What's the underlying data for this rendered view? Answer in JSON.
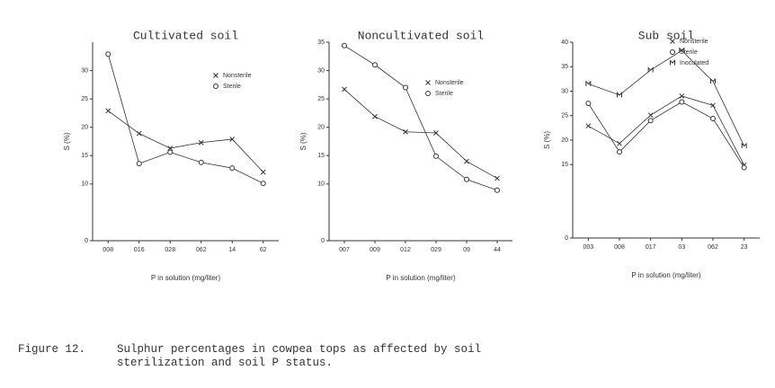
{
  "chart_data": [
    {
      "type": "line",
      "title": "Cultivated soil",
      "ylabel": "S (%)",
      "xlabel": "P in solution (mg/liter)",
      "categories": [
        "008",
        "016",
        "028",
        "062",
        "14",
        "62"
      ],
      "ylim": [
        0,
        35
      ],
      "yticks": [
        0,
        10,
        15,
        20,
        25,
        30
      ],
      "series": [
        {
          "name": "Nonsterile",
          "color": "#333",
          "values": [
            22.9,
            18.9,
            16.3,
            17.3,
            17.9,
            12.1
          ]
        },
        {
          "name": "Sterile",
          "color": "#333",
          "values": [
            32.9,
            13.6,
            15.6,
            13.8,
            12.8,
            10.1
          ]
        }
      ]
    },
    {
      "type": "line",
      "title": "Noncultivated soil",
      "ylabel": "S (%)",
      "xlabel": "P in solution (mg/liter)",
      "categories": [
        "007",
        "009",
        "012",
        "029",
        "09",
        "44"
      ],
      "ylim": [
        0,
        35
      ],
      "yticks": [
        0,
        10,
        15,
        20,
        25,
        30,
        35
      ],
      "series": [
        {
          "name": "Nonsterile",
          "color": "#333",
          "values": [
            26.7,
            21.9,
            19.2,
            19.0,
            14.0,
            11.0
          ]
        },
        {
          "name": "Sterile",
          "color": "#333",
          "values": [
            34.4,
            31.0,
            27.0,
            14.9,
            10.8,
            8.9
          ]
        }
      ]
    },
    {
      "type": "line",
      "title": "Sub soil",
      "ylabel": "S (%)",
      "xlabel": "P in solution (mg/liter)",
      "categories": [
        "003",
        "008",
        "017",
        "03",
        "062",
        "23"
      ],
      "ylim": [
        0,
        40
      ],
      "yticks": [
        0,
        15,
        20,
        25,
        30,
        35,
        40
      ],
      "series": [
        {
          "name": "Nonsterile",
          "color": "#333",
          "values": [
            22.9,
            19.3,
            25.1,
            29.0,
            27.1,
            14.9
          ]
        },
        {
          "name": "Sterile",
          "color": "#333",
          "values": [
            27.5,
            17.6,
            24.0,
            27.8,
            24.4,
            14.4
          ]
        },
        {
          "name": "Inoculated",
          "color": "#333",
          "values": [
            31.5,
            29.2,
            34.3,
            38.3,
            32.0,
            18.8
          ]
        }
      ]
    }
  ],
  "figure_label": "Figure 12.",
  "caption": "Sulphur percentages in cowpea tops as affected by soil sterilization and soil P status."
}
